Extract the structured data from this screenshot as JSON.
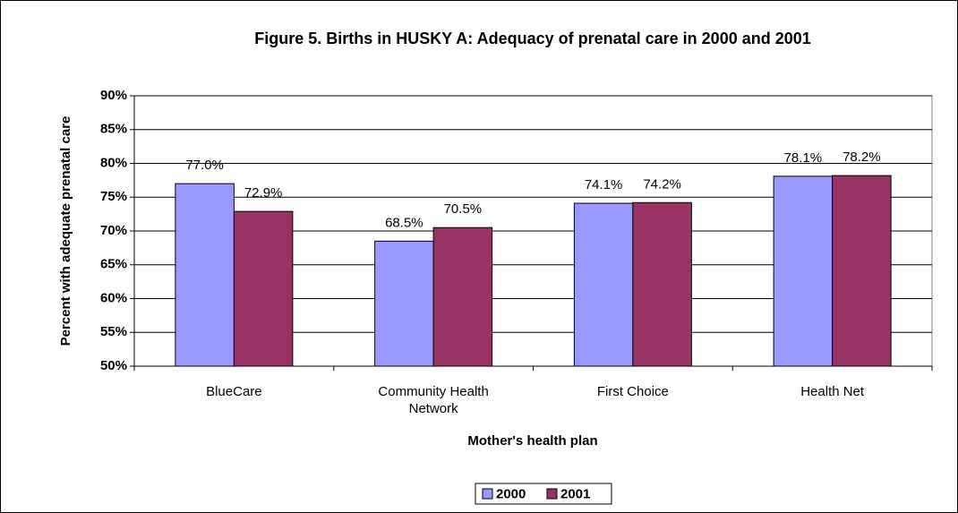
{
  "chart_data": {
    "type": "bar",
    "title": "Figure 5. Births in HUSKY A:  Adequacy of prenatal care in 2000 and 2001",
    "x_label": "Mother's health plan",
    "y_label": "Percent with adequate prenatal care",
    "categories": [
      "BlueCare",
      "Community Health Network",
      "First Choice",
      "Health Net"
    ],
    "series": [
      {
        "name": "2000",
        "color": "#9999ff",
        "values": [
          77.0,
          68.5,
          74.1,
          78.1
        ],
        "value_labels": [
          "77.0%",
          "68.5%",
          "74.1%",
          "78.1%"
        ]
      },
      {
        "name": "2001",
        "color": "#993366",
        "values": [
          72.9,
          70.5,
          74.2,
          78.2
        ],
        "value_labels": [
          "72.9%",
          "70.5%",
          "74.2%",
          "78.2%"
        ]
      }
    ],
    "ylim": [
      50,
      90
    ],
    "yticks": [
      {
        "value": 50,
        "label": "50%"
      },
      {
        "value": 55,
        "label": "55%"
      },
      {
        "value": 60,
        "label": "60%"
      },
      {
        "value": 65,
        "label": "65%"
      },
      {
        "value": 70,
        "label": "70%"
      },
      {
        "value": 75,
        "label": "75%"
      },
      {
        "value": 80,
        "label": "80%"
      },
      {
        "value": 85,
        "label": "85%"
      },
      {
        "value": 90,
        "label": "90%"
      }
    ],
    "grid": true,
    "legend": "bottom"
  }
}
